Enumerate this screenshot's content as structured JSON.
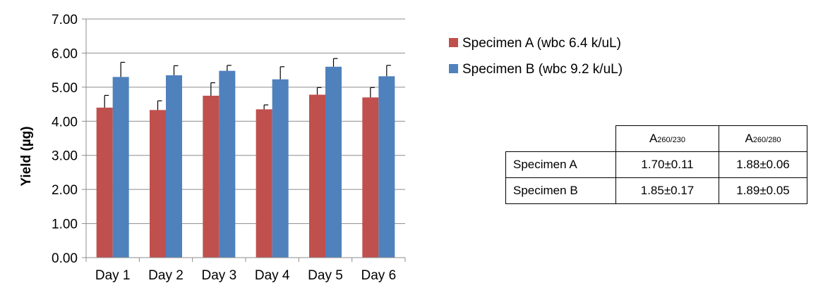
{
  "chart_data": {
    "type": "bar",
    "categories": [
      "Day 1",
      "Day 2",
      "Day 3",
      "Day 4",
      "Day 5",
      "Day 6"
    ],
    "series": [
      {
        "name": "Specimen A (wbc 6.4 k/uL)",
        "values": [
          4.4,
          4.33,
          4.75,
          4.35,
          4.78,
          4.7
        ],
        "errors": [
          0.36,
          0.27,
          0.38,
          0.13,
          0.21,
          0.29
        ],
        "color": "#C0504D"
      },
      {
        "name": "Specimen B (wbc 9.2 k/uL)",
        "values": [
          5.3,
          5.35,
          5.48,
          5.23,
          5.6,
          5.32
        ],
        "errors": [
          0.43,
          0.28,
          0.16,
          0.37,
          0.24,
          0.32
        ],
        "color": "#4F81BD"
      }
    ],
    "ylabel": "Yield (µg)",
    "ylim": [
      0,
      7
    ],
    "yticks": [
      "0.00",
      "1.00",
      "2.00",
      "3.00",
      "4.00",
      "5.00",
      "6.00",
      "7.00"
    ],
    "grid": true,
    "legend": "right"
  },
  "ratio_table": {
    "headers": [
      {
        "main": "A",
        "sub": "260/230"
      },
      {
        "main": "A",
        "sub": "260/280"
      }
    ],
    "rows": [
      {
        "label": "Specimen A",
        "values": [
          "1.70±0.11",
          "1.88±0.06"
        ]
      },
      {
        "label": "Specimen B",
        "values": [
          "1.85±0.17",
          "1.89±0.05"
        ]
      }
    ]
  }
}
